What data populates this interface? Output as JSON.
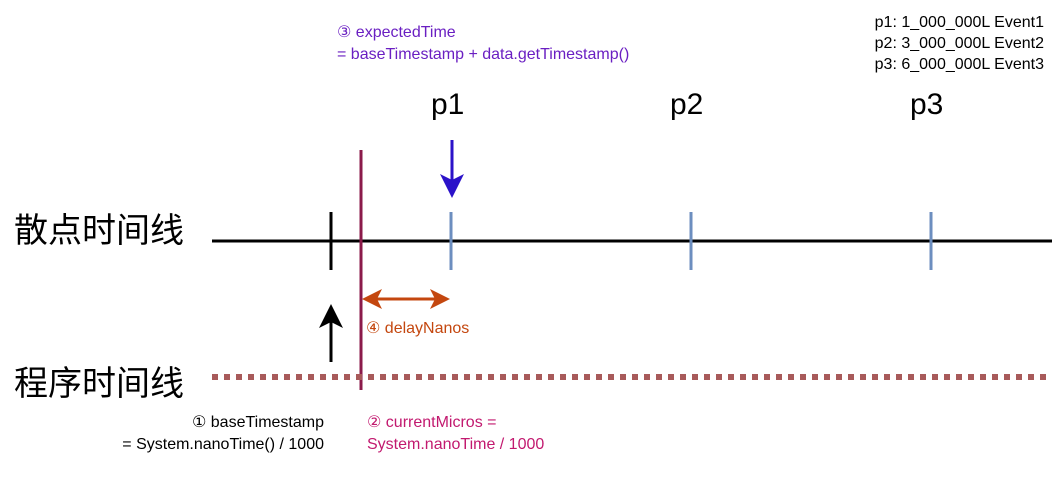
{
  "colors": {
    "expected": "#6a1fc2",
    "current": "#c2196f",
    "delay": "#c4470f",
    "blue_arrow": "#2b12c9",
    "tick": "#6c8ebf",
    "program_line": "#a85a5a",
    "current_line": "#8b1a4a"
  },
  "legend": {
    "lines": [
      "p1:  1_000_000L Event1",
      "p2:  3_000_000L Event2",
      "p3:  6_000_000L Event3"
    ]
  },
  "expected": {
    "line1": "③ expectedTime",
    "line2": "= baseTimestamp + data.getTimestamp()"
  },
  "points": [
    "p1",
    "p2",
    "p3"
  ],
  "axes": {
    "scatter": "散点时间线",
    "program": "程序时间线"
  },
  "delay": {
    "label": "④ delayNanos"
  },
  "base": {
    "line1": "① baseTimestamp",
    "line2": "= System.nanoTime()  / 1000"
  },
  "current": {
    "line1": "② currentMicros =",
    "line2": "System.nanoTime / 1000"
  }
}
